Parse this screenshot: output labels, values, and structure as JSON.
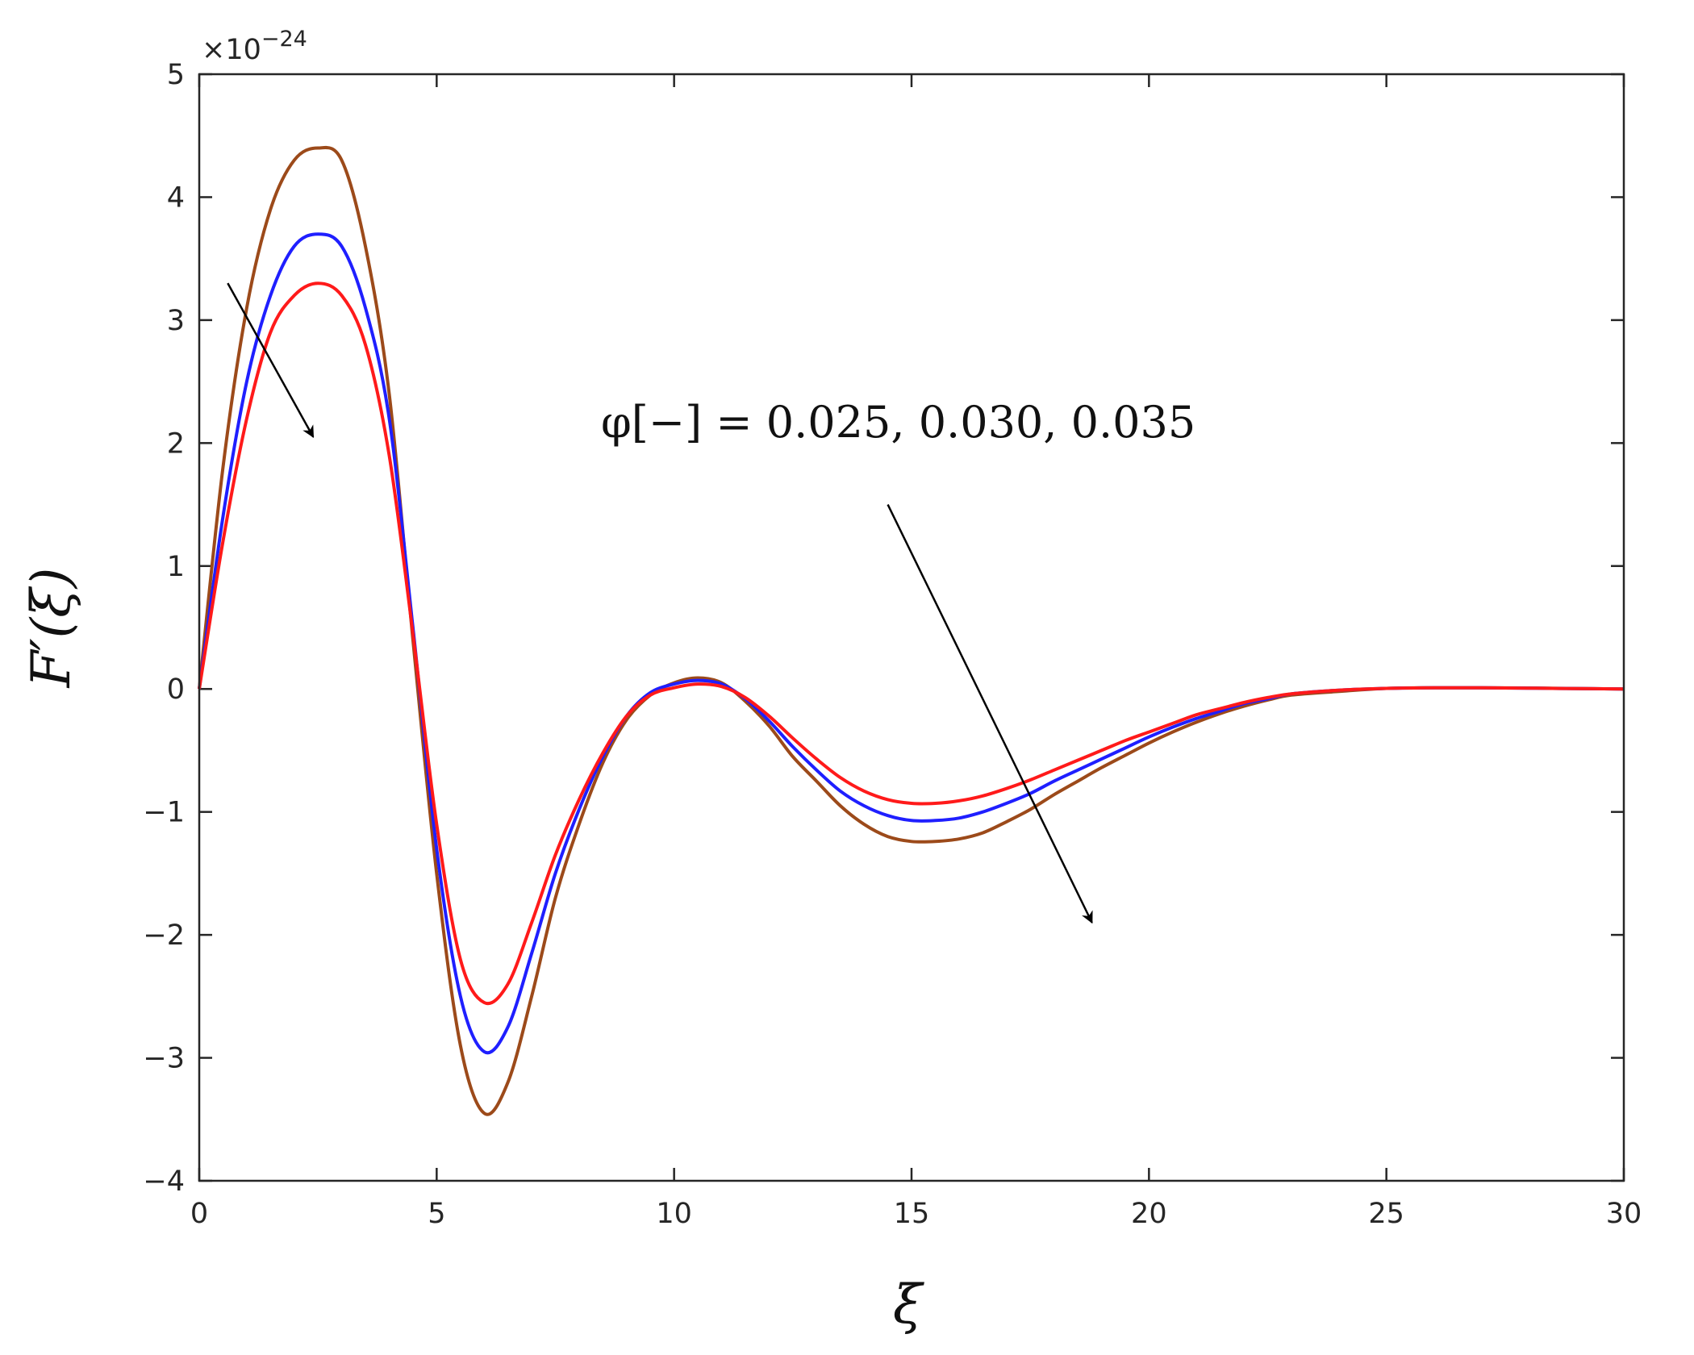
{
  "chart_data": {
    "type": "line",
    "xlabel": "ξ",
    "ylabel": "F′(ξ)",
    "xlim": [
      0,
      30
    ],
    "ylim": [
      -4,
      5
    ],
    "y_multiplier": "×10",
    "y_multiplier_exponent": "−24",
    "xticks": [
      "0",
      "5",
      "10",
      "15",
      "20",
      "25",
      "30"
    ],
    "yticks": [
      "−4",
      "−3",
      "−2",
      "−1",
      "0",
      "1",
      "2",
      "3",
      "4",
      "5"
    ],
    "xtick_values": [
      0,
      5,
      10,
      15,
      20,
      25,
      30
    ],
    "ytick_values": [
      -4,
      -3,
      -2,
      -1,
      0,
      1,
      2,
      3,
      4,
      5
    ],
    "annotation": "φ[−] = 0.025, 0.030, 0.035",
    "grid": false,
    "series": [
      {
        "color": "#9c4a1a",
        "points": [
          [
            0,
            0
          ],
          [
            0.5,
            1.8
          ],
          [
            1,
            3.1
          ],
          [
            1.5,
            3.9
          ],
          [
            2,
            4.3
          ],
          [
            2.5,
            4.4
          ],
          [
            3,
            4.3
          ],
          [
            3.5,
            3.6
          ],
          [
            4,
            2.4
          ],
          [
            4.5,
            0.4
          ],
          [
            5,
            -1.5
          ],
          [
            5.5,
            -2.9
          ],
          [
            6,
            -3.45
          ],
          [
            6.5,
            -3.2
          ],
          [
            7,
            -2.5
          ],
          [
            7.5,
            -1.7
          ],
          [
            8,
            -1.1
          ],
          [
            8.5,
            -0.6
          ],
          [
            9,
            -0.25
          ],
          [
            9.5,
            -0.05
          ],
          [
            10,
            0.05
          ],
          [
            10.5,
            0.09
          ],
          [
            11,
            0.05
          ],
          [
            11.5,
            -0.1
          ],
          [
            12,
            -0.3
          ],
          [
            12.5,
            -0.55
          ],
          [
            13,
            -0.75
          ],
          [
            13.5,
            -0.95
          ],
          [
            14,
            -1.1
          ],
          [
            14.5,
            -1.2
          ],
          [
            15,
            -1.24
          ],
          [
            15.5,
            -1.24
          ],
          [
            16,
            -1.22
          ],
          [
            16.5,
            -1.17
          ],
          [
            17,
            -1.08
          ],
          [
            17.5,
            -0.98
          ],
          [
            18,
            -0.86
          ],
          [
            18.5,
            -0.75
          ],
          [
            19,
            -0.64
          ],
          [
            19.5,
            -0.54
          ],
          [
            20,
            -0.44
          ],
          [
            20.5,
            -0.35
          ],
          [
            21,
            -0.27
          ],
          [
            21.5,
            -0.2
          ],
          [
            22,
            -0.14
          ],
          [
            22.5,
            -0.09
          ],
          [
            23,
            -0.05
          ],
          [
            24,
            -0.02
          ],
          [
            25,
            0.005
          ],
          [
            26,
            0.01
          ],
          [
            27,
            0.01
          ],
          [
            28,
            0.008
          ],
          [
            29,
            0.004
          ],
          [
            30,
            0
          ]
        ]
      },
      {
        "color": "#1f1fff",
        "points": [
          [
            0,
            0
          ],
          [
            0.5,
            1.4
          ],
          [
            1,
            2.5
          ],
          [
            1.5,
            3.2
          ],
          [
            2,
            3.6
          ],
          [
            2.5,
            3.7
          ],
          [
            3,
            3.6
          ],
          [
            3.5,
            3.1
          ],
          [
            4,
            2.2
          ],
          [
            4.5,
            0.5
          ],
          [
            5,
            -1.3
          ],
          [
            5.5,
            -2.5
          ],
          [
            6,
            -2.95
          ],
          [
            6.5,
            -2.75
          ],
          [
            7,
            -2.15
          ],
          [
            7.5,
            -1.5
          ],
          [
            8,
            -0.98
          ],
          [
            8.5,
            -0.55
          ],
          [
            9,
            -0.22
          ],
          [
            9.5,
            -0.03
          ],
          [
            10,
            0.04
          ],
          [
            10.5,
            0.07
          ],
          [
            11,
            0.04
          ],
          [
            11.5,
            -0.08
          ],
          [
            12,
            -0.26
          ],
          [
            12.5,
            -0.47
          ],
          [
            13,
            -0.66
          ],
          [
            13.5,
            -0.83
          ],
          [
            14,
            -0.95
          ],
          [
            14.5,
            -1.03
          ],
          [
            15,
            -1.07
          ],
          [
            15.5,
            -1.07
          ],
          [
            16,
            -1.05
          ],
          [
            16.5,
            -1.0
          ],
          [
            17,
            -0.93
          ],
          [
            17.5,
            -0.85
          ],
          [
            18,
            -0.75
          ],
          [
            18.5,
            -0.66
          ],
          [
            19,
            -0.57
          ],
          [
            19.5,
            -0.48
          ],
          [
            20,
            -0.39
          ],
          [
            20.5,
            -0.31
          ],
          [
            21,
            -0.24
          ],
          [
            21.5,
            -0.18
          ],
          [
            22,
            -0.12
          ],
          [
            22.5,
            -0.08
          ],
          [
            23,
            -0.04
          ],
          [
            24,
            -0.01
          ],
          [
            25,
            0.005
          ],
          [
            26,
            0.01
          ],
          [
            27,
            0.01
          ],
          [
            28,
            0.007
          ],
          [
            29,
            0.003
          ],
          [
            30,
            0
          ]
        ]
      },
      {
        "color": "#ff1a1a",
        "points": [
          [
            0,
            0
          ],
          [
            0.5,
            1.2
          ],
          [
            1,
            2.2
          ],
          [
            1.5,
            2.9
          ],
          [
            2,
            3.2
          ],
          [
            2.5,
            3.3
          ],
          [
            3,
            3.2
          ],
          [
            3.5,
            2.8
          ],
          [
            4,
            1.9
          ],
          [
            4.5,
            0.45
          ],
          [
            5,
            -1.1
          ],
          [
            5.5,
            -2.2
          ],
          [
            6,
            -2.55
          ],
          [
            6.5,
            -2.4
          ],
          [
            7,
            -1.9
          ],
          [
            7.5,
            -1.35
          ],
          [
            8,
            -0.9
          ],
          [
            8.5,
            -0.52
          ],
          [
            9,
            -0.22
          ],
          [
            9.5,
            -0.05
          ],
          [
            10,
            0.01
          ],
          [
            10.5,
            0.04
          ],
          [
            11,
            0.02
          ],
          [
            11.5,
            -0.07
          ],
          [
            12,
            -0.22
          ],
          [
            12.5,
            -0.4
          ],
          [
            13,
            -0.57
          ],
          [
            13.5,
            -0.72
          ],
          [
            14,
            -0.83
          ],
          [
            14.5,
            -0.9
          ],
          [
            15,
            -0.93
          ],
          [
            15.5,
            -0.93
          ],
          [
            16,
            -0.91
          ],
          [
            16.5,
            -0.87
          ],
          [
            17,
            -0.81
          ],
          [
            17.5,
            -0.74
          ],
          [
            18,
            -0.66
          ],
          [
            18.5,
            -0.58
          ],
          [
            19,
            -0.5
          ],
          [
            19.5,
            -0.42
          ],
          [
            20,
            -0.35
          ],
          [
            20.5,
            -0.28
          ],
          [
            21,
            -0.21
          ],
          [
            21.5,
            -0.16
          ],
          [
            22,
            -0.11
          ],
          [
            22.5,
            -0.07
          ],
          [
            23,
            -0.04
          ],
          [
            24,
            -0.01
          ],
          [
            25,
            0.005
          ],
          [
            26,
            0.01
          ],
          [
            27,
            0.01
          ],
          [
            28,
            0.007
          ],
          [
            29,
            0.003
          ],
          [
            30,
            0
          ]
        ]
      }
    ],
    "arrows": [
      {
        "from": [
          0.6,
          3.3
        ],
        "to": [
          2.4,
          2.05
        ]
      },
      {
        "from": [
          14.5,
          1.5
        ],
        "to": [
          18.8,
          -1.9
        ]
      }
    ]
  }
}
